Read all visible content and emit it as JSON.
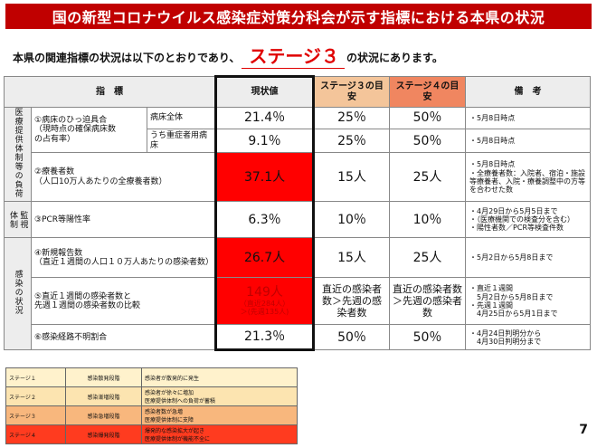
{
  "title": "国の新型コロナウイルス感染症対策分科会が示す指標における本県の状況",
  "subtitle": {
    "before": "本県の関連指標の状況は以下のとおりであり、",
    "stage": "ステージ３",
    "after": "の状況にあります。"
  },
  "headers": {
    "indicator": "指　標",
    "current": "現状値",
    "stage3": "ステージ３の目安",
    "stage4": "ステージ４の目安",
    "notes": "備　考"
  },
  "categories": {
    "medical": "医療提供体制等の負荷",
    "monitoring": [
      "監視",
      "体制"
    ],
    "infection": "感染の状況"
  },
  "rows": {
    "r1": {
      "name": "①病床のひっ迫具合\n（現時点の確保病床数\nの占有率）",
      "sub1": "病床全体",
      "cur1": "21.4％",
      "s3a": "25％",
      "s4a": "50％",
      "note1": "・5月8日時点",
      "sub2": "うち重症者用病床",
      "cur2": "9.1％",
      "s3b": "25％",
      "s4b": "50％",
      "note2": "・5月8日時点"
    },
    "r2": {
      "name": "②療養者数\n（人口10万人あたりの全療養者数）",
      "cur": "37.1人",
      "s3": "15人",
      "s4": "25人",
      "note": "・5月8日時点\n・全療養者数：入院者、宿泊・施設等療養者、入院・療養調整中の方等を合わせた数"
    },
    "r3": {
      "name": "③PCR等陽性率",
      "cur": "6.3％",
      "s3": "10％",
      "s4": "10％",
      "note": "・4月29日から5月5日まで\n・（医療機関での検査分を含む）\n・陽性者数／PCR等検査件数"
    },
    "r4": {
      "name": "④新規報告数\n（直近１週間の人口１０万人あたりの感染者数）",
      "cur": "26.7人",
      "s3": "15人",
      "s4": "25人",
      "note": "・5月2日から5月8日まで"
    },
    "r5": {
      "name": "⑤直近１週間の感染者数と\n先週１週間の感染者数の比較",
      "cur": "149人",
      "cur_sub1": "（直近284人）",
      "cur_sub2": "＞(先週135人)",
      "s3": "直近の感染者数＞先週の感染者数",
      "s4": "直近の感染者数＞先週の感染者数",
      "note": "・直近１週間\n　5月2日から5月8日まで\n・先週１週間\n　4月25日から5月1日まで"
    },
    "r6": {
      "name": "⑥感染経路不明割合",
      "cur": "21.3％",
      "s3": "50％",
      "s4": "50％",
      "note": "・4月24日判明分から\n　4月30日判明分まで"
    }
  },
  "legend": [
    {
      "stage": "ステージ１",
      "phase": "感染散発段階",
      "desc": "感染者が散発的に発生"
    },
    {
      "stage": "ステージ２",
      "phase": "感染漸増段階",
      "desc": "感染者が徐々に増加\n医療提供体制への負荷が蓄積"
    },
    {
      "stage": "ステージ３",
      "phase": "感染急増段階",
      "desc": "感染者数が急増\n医療提供体制に支障"
    },
    {
      "stage": "ステージ４",
      "phase": "感染爆発段階",
      "desc": "爆発的な感染拡大が起き\n医療提供体制が機能不全に"
    }
  ],
  "page_number": "7",
  "colors": {
    "title_bg": "#c00000",
    "alert_red": "#ff0000",
    "stage3_header": "#f4c59a",
    "stage4_header": "#f08660"
  }
}
